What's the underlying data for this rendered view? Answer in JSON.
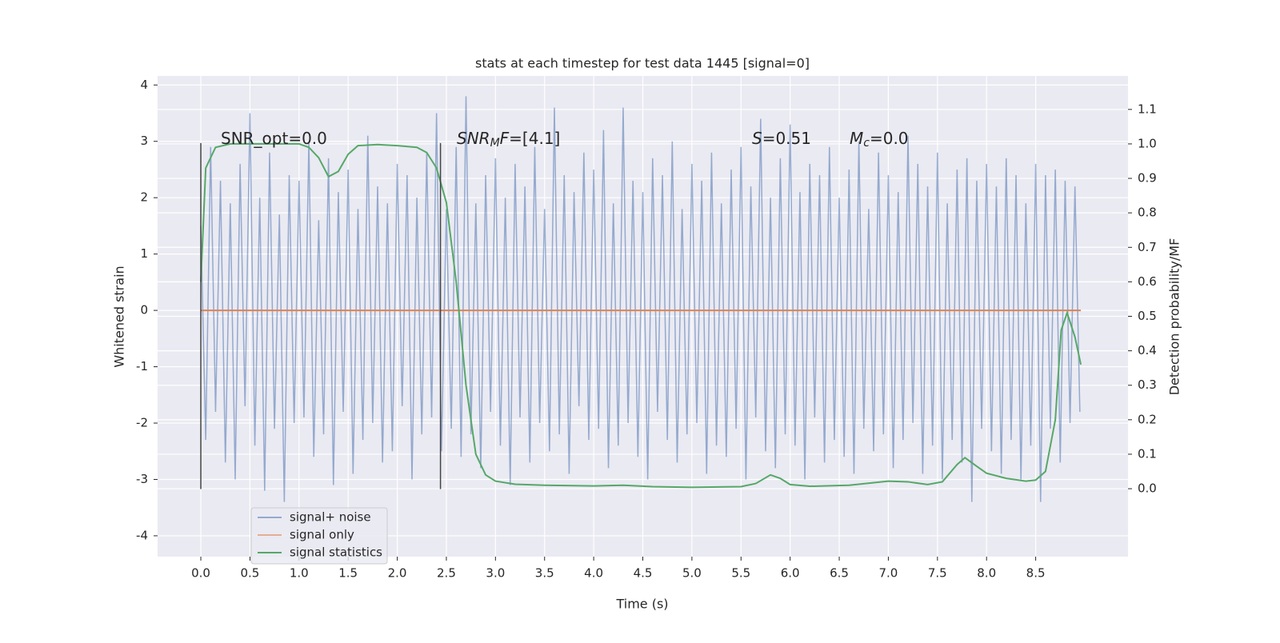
{
  "chart_data": {
    "type": "line",
    "title": "stats at each timestep for test data 1445 [signal=0]",
    "xlabel": "Time (s)",
    "ylabel": "Whitened strain",
    "y2label": "Detection probability/MF",
    "xlim": [
      -0.44,
      9.44
    ],
    "ylim": [
      -4.37,
      4.16
    ],
    "y2lim": [
      -0.197,
      1.197
    ],
    "xticks": [
      {
        "value": 0,
        "label": "0.0"
      },
      {
        "value": 0.5,
        "label": "0.5"
      },
      {
        "value": 1,
        "label": "1.0"
      },
      {
        "value": 1.5,
        "label": "1.5"
      },
      {
        "value": 2,
        "label": "2.0"
      },
      {
        "value": 2.5,
        "label": "2.5"
      },
      {
        "value": 3,
        "label": "3.0"
      },
      {
        "value": 3.5,
        "label": "3.5"
      },
      {
        "value": 4,
        "label": "4.0"
      },
      {
        "value": 4.5,
        "label": "4.5"
      },
      {
        "value": 5,
        "label": "5.0"
      },
      {
        "value": 5.5,
        "label": "5.5"
      },
      {
        "value": 6,
        "label": "6.0"
      },
      {
        "value": 6.5,
        "label": "6.5"
      },
      {
        "value": 7,
        "label": "7.0"
      },
      {
        "value": 7.5,
        "label": "7.5"
      },
      {
        "value": 8,
        "label": "8.0"
      },
      {
        "value": 8.5,
        "label": "8.5"
      }
    ],
    "yticks": [
      -4,
      -3,
      -2,
      -1,
      0,
      1,
      2,
      3,
      4
    ],
    "y2ticks": [
      {
        "value": 0,
        "label": "0.0"
      },
      {
        "value": 0.1,
        "label": "0.1"
      },
      {
        "value": 0.2,
        "label": "0.2"
      },
      {
        "value": 0.3,
        "label": "0.3"
      },
      {
        "value": 0.4,
        "label": "0.4"
      },
      {
        "value": 0.5,
        "label": "0.5"
      },
      {
        "value": 0.6,
        "label": "0.6"
      },
      {
        "value": 0.7,
        "label": "0.7"
      },
      {
        "value": 0.8,
        "label": "0.8"
      },
      {
        "value": 0.9,
        "label": "0.9"
      },
      {
        "value": 1,
        "label": "1.0"
      },
      {
        "value": 1.1,
        "label": "1.1"
      }
    ],
    "grid": true,
    "legend": "lower left",
    "series": [
      {
        "name": "signal+ noise",
        "color": "#4c72b0",
        "x": [
          0,
          0.05,
          0.1,
          0.15,
          0.2,
          0.25,
          0.3,
          0.35,
          0.4,
          0.45,
          0.5,
          0.55,
          0.6,
          0.65,
          0.7,
          0.75,
          0.8,
          0.85,
          0.9,
          0.95,
          1,
          1.05,
          1.1,
          1.15,
          1.2,
          1.25,
          1.3,
          1.35,
          1.4,
          1.45,
          1.5,
          1.55,
          1.6,
          1.65,
          1.7,
          1.75,
          1.8,
          1.85,
          1.9,
          1.95,
          2,
          2.05,
          2.1,
          2.15,
          2.2,
          2.25,
          2.3,
          2.35,
          2.4,
          2.45,
          2.5,
          2.55,
          2.6,
          2.65,
          2.7,
          2.75,
          2.8,
          2.85,
          2.9,
          2.95,
          3,
          3.05,
          3.1,
          3.15,
          3.2,
          3.25,
          3.3,
          3.35,
          3.4,
          3.45,
          3.5,
          3.55,
          3.6,
          3.65,
          3.7,
          3.75,
          3.8,
          3.85,
          3.9,
          3.95,
          4,
          4.05,
          4.1,
          4.15,
          4.2,
          4.25,
          4.3,
          4.35,
          4.4,
          4.45,
          4.5,
          4.55,
          4.6,
          4.65,
          4.7,
          4.75,
          4.8,
          4.85,
          4.9,
          4.95,
          5,
          5.05,
          5.1,
          5.15,
          5.2,
          5.25,
          5.3,
          5.35,
          5.4,
          5.45,
          5.5,
          5.55,
          5.6,
          5.65,
          5.7,
          5.75,
          5.8,
          5.85,
          5.9,
          5.95,
          6,
          6.05,
          6.1,
          6.15,
          6.2,
          6.25,
          6.3,
          6.35,
          6.4,
          6.45,
          6.5,
          6.55,
          6.6,
          6.65,
          6.7,
          6.75,
          6.8,
          6.85,
          6.9,
          6.95,
          7,
          7.05,
          7.1,
          7.15,
          7.2,
          7.25,
          7.3,
          7.35,
          7.4,
          7.45,
          7.5,
          7.55,
          7.6,
          7.65,
          7.7,
          7.75,
          7.8,
          7.85,
          7.9,
          7.95,
          8,
          8.05,
          8.1,
          8.15,
          8.2,
          8.25,
          8.3,
          8.35,
          8.4,
          8.45,
          8.5,
          8.55,
          8.6,
          8.65,
          8.7,
          8.75,
          8.8,
          8.85,
          8.9,
          8.95
        ],
        "values": [
          1.5,
          -2.3,
          2.9,
          -1.8,
          2.3,
          -2.7,
          1.9,
          -3.0,
          2.6,
          -1.7,
          3.5,
          -2.4,
          2.0,
          -3.2,
          2.8,
          -2.1,
          1.7,
          -3.4,
          2.4,
          -2.0,
          2.3,
          -1.9,
          3.0,
          -2.6,
          1.6,
          -2.2,
          2.7,
          -3.1,
          2.1,
          -1.8,
          2.5,
          -2.9,
          1.8,
          -2.3,
          3.1,
          -2.0,
          2.2,
          -2.7,
          1.9,
          -2.5,
          2.6,
          -1.7,
          2.4,
          -3.0,
          2.0,
          -2.2,
          2.8,
          -1.9,
          3.5,
          -2.5,
          1.8,
          -2.1,
          2.9,
          -2.6,
          3.8,
          -2.2,
          1.9,
          -2.8,
          2.4,
          -1.8,
          2.7,
          -2.4,
          2.0,
          -3.1,
          2.6,
          -1.9,
          2.2,
          -2.7,
          2.9,
          -2.0,
          1.8,
          -2.5,
          3.6,
          -2.2,
          2.4,
          -2.9,
          2.1,
          -1.7,
          2.8,
          -2.3,
          2.5,
          -2.1,
          3.2,
          -2.8,
          1.9,
          -2.4,
          3.6,
          -2.0,
          2.3,
          -2.6,
          2.1,
          -3.0,
          2.7,
          -1.8,
          2.4,
          -2.3,
          3.0,
          -2.7,
          1.8,
          -2.2,
          2.6,
          -2.0,
          2.3,
          -2.9,
          2.8,
          -2.4,
          1.9,
          -2.6,
          2.5,
          -2.1,
          2.9,
          -3.0,
          2.2,
          -1.9,
          3.4,
          -2.5,
          2.0,
          -2.8,
          2.7,
          -2.2,
          3.3,
          -2.4,
          2.1,
          -3.0,
          2.6,
          -1.9,
          2.4,
          -2.7,
          2.9,
          -2.3,
          2.0,
          -2.6,
          2.5,
          -2.9,
          3.0,
          -2.1,
          1.8,
          -2.5,
          2.8,
          -2.2,
          2.4,
          -2.8,
          2.1,
          -2.3,
          3.1,
          -2.0,
          2.6,
          -2.9,
          2.2,
          -2.4,
          2.8,
          -3.0,
          1.9,
          -2.3,
          2.5,
          -2.7,
          2.7,
          -3.4,
          2.3,
          -2.1,
          2.6,
          -2.5,
          2.2,
          -2.9,
          2.7,
          -2.3,
          2.4,
          -3.0,
          1.9,
          -2.4,
          2.6,
          -3.4,
          2.4,
          -2.1,
          2.5,
          -2.7,
          2.3,
          -2.0,
          2.2,
          -1.8
        ]
      },
      {
        "name": "signal only",
        "color": "#dd8452",
        "x": [
          0,
          8.96
        ],
        "values": [
          0,
          0
        ]
      },
      {
        "name": "signal statistics",
        "color": "#55a868",
        "axis": "y2",
        "x": [
          0,
          0.05,
          0.15,
          0.3,
          0.5,
          1.0,
          1.1,
          1.2,
          1.3,
          1.4,
          1.5,
          1.6,
          1.8,
          2.0,
          2.2,
          2.3,
          2.4,
          2.5,
          2.6,
          2.7,
          2.8,
          2.9,
          3.0,
          3.2,
          3.5,
          4.0,
          4.3,
          4.6,
          5.0,
          5.5,
          5.65,
          5.8,
          5.9,
          6.0,
          6.2,
          6.6,
          7.0,
          7.2,
          7.4,
          7.55,
          7.7,
          7.78,
          7.9,
          8.0,
          8.2,
          8.4,
          8.5,
          8.6,
          8.7,
          8.76,
          8.82,
          8.9,
          8.96
        ],
        "values": [
          0.6,
          0.93,
          0.99,
          1.0,
          1.0,
          1.0,
          0.99,
          0.96,
          0.905,
          0.92,
          0.97,
          0.995,
          0.998,
          0.995,
          0.99,
          0.975,
          0.93,
          0.83,
          0.6,
          0.3,
          0.1,
          0.04,
          0.022,
          0.013,
          0.01,
          0.008,
          0.01,
          0.006,
          0.004,
          0.006,
          0.015,
          0.04,
          0.03,
          0.012,
          0.007,
          0.01,
          0.022,
          0.02,
          0.012,
          0.02,
          0.07,
          0.09,
          0.065,
          0.045,
          0.03,
          0.022,
          0.025,
          0.05,
          0.2,
          0.46,
          0.51,
          0.44,
          0.36
        ]
      }
    ],
    "vlines": {
      "x": [
        0,
        2.44
      ],
      "ymin": -3.17,
      "ymax": 2.97,
      "color": "#444444"
    },
    "annotations": [
      {
        "parts": [
          {
            "text": "SNR_opt=0.0"
          }
        ]
      },
      {
        "parts": [
          {
            "text": "SNR",
            "style": "italic"
          },
          {
            "text": "M",
            "style": "sub"
          },
          {
            "text": "F",
            "style": "italic"
          },
          {
            "text": "=[4.1]"
          }
        ]
      },
      {
        "parts": [
          {
            "text": "S",
            "style": "italic"
          },
          {
            "text": "=0.51"
          }
        ]
      },
      {
        "parts": [
          {
            "text": "M",
            "style": "italic"
          },
          {
            "text": "c",
            "style": "sub"
          },
          {
            "text": "=0.0"
          }
        ]
      }
    ]
  }
}
